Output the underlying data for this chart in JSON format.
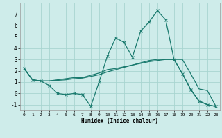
{
  "xlabel": "Humidex (Indice chaleur)",
  "bg_color": "#ceecea",
  "grid_color": "#a8d5d0",
  "line_color": "#1a7a6e",
  "xlim": [
    -0.5,
    23.5
  ],
  "ylim": [
    -1.5,
    8.0
  ],
  "xticks": [
    0,
    1,
    2,
    3,
    4,
    5,
    6,
    7,
    8,
    9,
    10,
    11,
    12,
    13,
    14,
    15,
    16,
    17,
    18,
    19,
    20,
    21,
    22,
    23
  ],
  "yticks": [
    -1,
    0,
    1,
    2,
    3,
    4,
    5,
    6,
    7
  ],
  "line1_x": [
    0,
    1,
    2,
    3,
    4,
    5,
    6,
    7,
    8,
    9,
    10,
    11,
    12,
    13,
    14,
    15,
    16,
    17,
    18,
    19,
    20,
    21,
    22,
    23
  ],
  "line1_y": [
    2.2,
    1.2,
    1.1,
    1.1,
    1.2,
    1.3,
    1.4,
    1.4,
    1.6,
    1.8,
    2.1,
    2.2,
    2.35,
    2.5,
    2.65,
    2.8,
    2.9,
    3.0,
    3.0,
    3.0,
    1.75,
    0.4,
    0.25,
    -1.1
  ],
  "line2_x": [
    0,
    1,
    2,
    3,
    4,
    5,
    6,
    7,
    8,
    9,
    10,
    11,
    12,
    13,
    14,
    15,
    16,
    17,
    18,
    19,
    20,
    21,
    22,
    23
  ],
  "line2_y": [
    2.2,
    1.2,
    1.1,
    0.7,
    0.0,
    -0.1,
    0.0,
    -0.1,
    -1.15,
    1.0,
    3.3,
    4.9,
    4.5,
    3.2,
    5.5,
    6.3,
    7.3,
    6.5,
    3.0,
    1.75,
    0.35,
    -0.7,
    -1.0,
    -1.15
  ],
  "line3_x": [
    0,
    1,
    2,
    3,
    4,
    5,
    6,
    7,
    8,
    9,
    10,
    11,
    12,
    13,
    14,
    15,
    16,
    17,
    18,
    19,
    20,
    21,
    22,
    23
  ],
  "line3_y": [
    2.2,
    1.2,
    1.1,
    1.1,
    1.15,
    1.2,
    1.3,
    1.35,
    1.5,
    1.65,
    1.9,
    2.1,
    2.3,
    2.5,
    2.7,
    2.9,
    3.0,
    3.0,
    3.0,
    1.75,
    0.35,
    -0.65,
    -1.0,
    -1.15
  ]
}
